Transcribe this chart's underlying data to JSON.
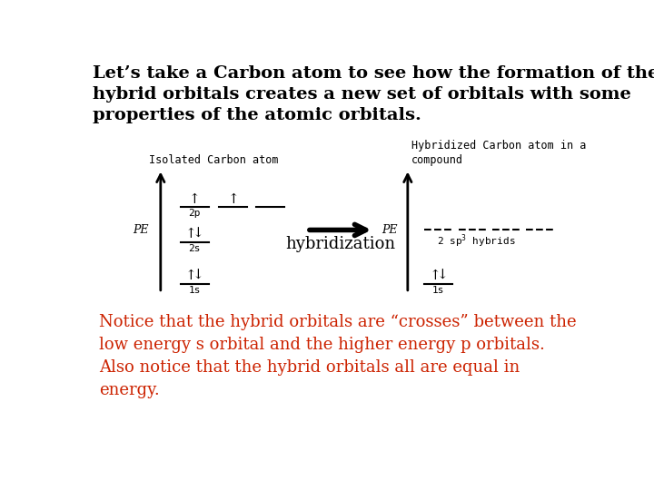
{
  "title_text": "Let’s take a Carbon atom to see how the formation of the\nhybrid orbitals creates a new set of orbitals with some\nproperties of the atomic orbitals.",
  "title_color": "#000000",
  "title_fontsize": 14,
  "bg_color": "#ffffff",
  "notice_text": "Notice that the hybrid orbitals are “crosses” between the\nlow energy s orbital and the higher energy p orbitals.\nAlso notice that the hybrid orbitals all are equal in\nenergy.",
  "notice_color": "#cc2200",
  "notice_fontsize": 13,
  "left_label": "Isolated Carbon atom",
  "right_label": "Hybridized Carbon atom in a\ncompound",
  "pe_label": "PE",
  "hybridization_label": "hybridization",
  "sp3_label": "2 sp",
  "hybrids_label": " hybrids",
  "orbital_labels": [
    "1s",
    "2s",
    "2p",
    "1s"
  ],
  "line_color": "#000000",
  "arrow_color": "#000000"
}
